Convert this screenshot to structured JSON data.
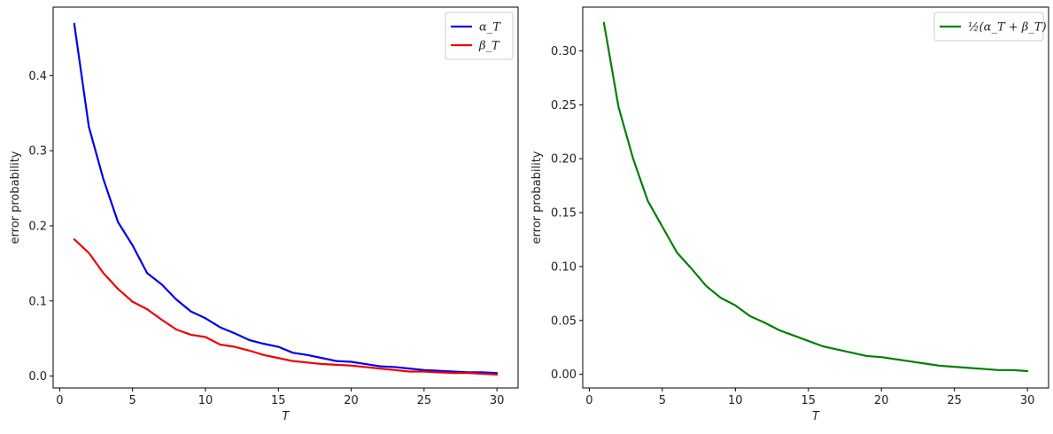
{
  "chart_data": [
    {
      "type": "line",
      "xlabel": "T",
      "ylabel": "error probability",
      "xlim": [
        -0.45,
        31.45
      ],
      "ylim": [
        -0.0158,
        0.4912
      ],
      "xticks": [
        0,
        5,
        10,
        15,
        20,
        25,
        30
      ],
      "xtick_labels": [
        "0",
        "5",
        "10",
        "15",
        "20",
        "25",
        "30"
      ],
      "yticks": [
        0.0,
        0.1,
        0.2,
        0.3,
        0.4
      ],
      "ytick_labels": [
        "0.0",
        "0.1",
        "0.2",
        "0.3",
        "0.4"
      ],
      "grid": false,
      "legend_position": "top-right",
      "x": [
        1,
        2,
        3,
        4,
        5,
        6,
        7,
        8,
        9,
        10,
        11,
        12,
        13,
        14,
        15,
        16,
        17,
        18,
        19,
        20,
        21,
        22,
        23,
        24,
        25,
        26,
        27,
        28,
        29,
        30
      ],
      "series": [
        {
          "name": "α_T",
          "color": "#0000ee",
          "values": [
            0.469,
            0.332,
            0.262,
            0.205,
            0.174,
            0.137,
            0.122,
            0.102,
            0.086,
            0.077,
            0.065,
            0.057,
            0.048,
            0.043,
            0.039,
            0.031,
            0.028,
            0.024,
            0.02,
            0.019,
            0.016,
            0.013,
            0.012,
            0.01,
            0.008,
            0.007,
            0.006,
            0.005,
            0.005,
            0.004
          ]
        },
        {
          "name": "β_T",
          "color": "#ee0000",
          "values": [
            0.182,
            0.164,
            0.137,
            0.116,
            0.099,
            0.089,
            0.075,
            0.062,
            0.055,
            0.052,
            0.042,
            0.039,
            0.034,
            0.028,
            0.024,
            0.02,
            0.018,
            0.016,
            0.015,
            0.014,
            0.012,
            0.01,
            0.008,
            0.006,
            0.006,
            0.005,
            0.004,
            0.004,
            0.003,
            0.002
          ]
        }
      ]
    },
    {
      "type": "line",
      "xlabel": "T",
      "ylabel": "error probability",
      "xlim": [
        -0.45,
        31.45
      ],
      "ylim": [
        -0.0126,
        0.3406
      ],
      "xticks": [
        0,
        5,
        10,
        15,
        20,
        25,
        30
      ],
      "xtick_labels": [
        "0",
        "5",
        "10",
        "15",
        "20",
        "25",
        "30"
      ],
      "yticks": [
        0.0,
        0.05,
        0.1,
        0.15,
        0.2,
        0.25,
        0.3
      ],
      "ytick_labels": [
        "0.00",
        "0.05",
        "0.10",
        "0.15",
        "0.20",
        "0.25",
        "0.30"
      ],
      "grid": false,
      "legend_position": "top-right",
      "x": [
        1,
        2,
        3,
        4,
        5,
        6,
        7,
        8,
        9,
        10,
        11,
        12,
        13,
        14,
        15,
        16,
        17,
        18,
        19,
        20,
        21,
        22,
        23,
        24,
        25,
        26,
        27,
        28,
        29,
        30
      ],
      "series": [
        {
          "name": "½(α_T + β_T)",
          "color": "#008000",
          "values": [
            0.326,
            0.248,
            0.2,
            0.161,
            0.137,
            0.113,
            0.098,
            0.082,
            0.071,
            0.064,
            0.054,
            0.048,
            0.041,
            0.036,
            0.031,
            0.026,
            0.023,
            0.02,
            0.017,
            0.016,
            0.014,
            0.012,
            0.01,
            0.008,
            0.007,
            0.006,
            0.005,
            0.004,
            0.004,
            0.003
          ]
        }
      ]
    }
  ]
}
